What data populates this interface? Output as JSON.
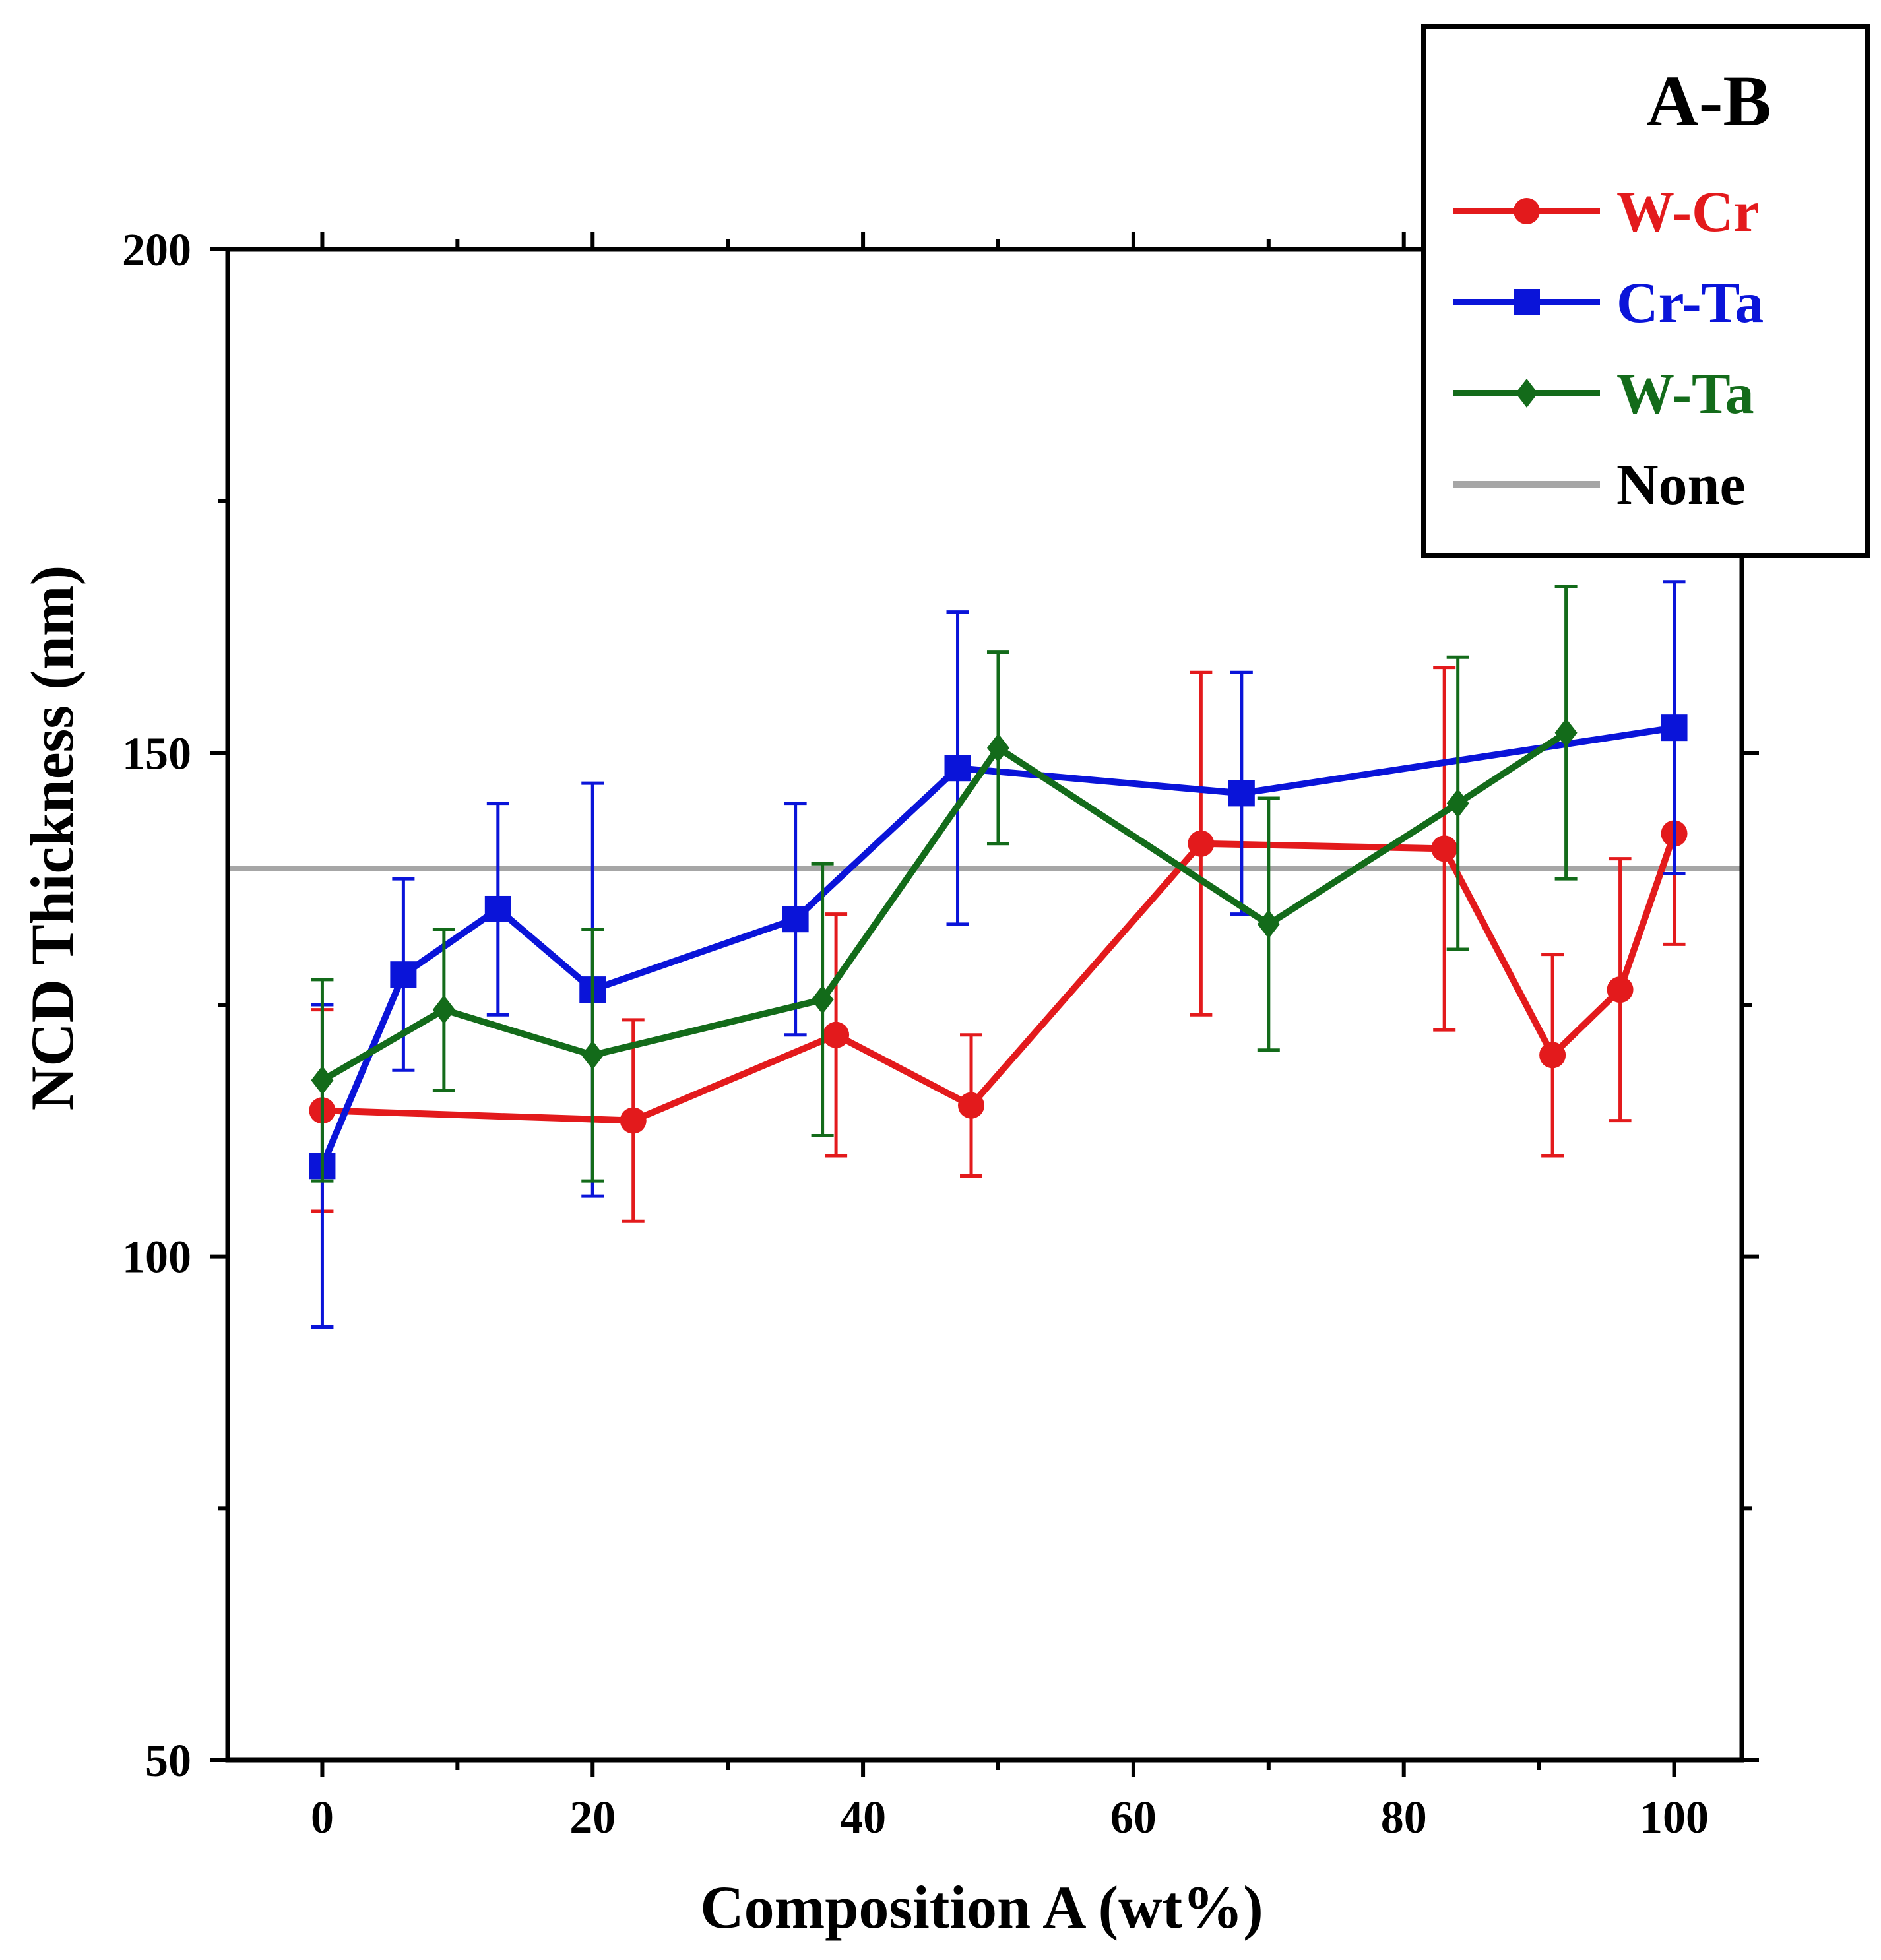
{
  "chart_data": {
    "type": "line",
    "xlabel": "Composition A (wt%)",
    "ylabel": "NCD Thickness (nm)",
    "xlim": [
      -7,
      105
    ],
    "ylim": [
      50,
      200
    ],
    "x_ticks": [
      0,
      20,
      40,
      60,
      80,
      100
    ],
    "x_minor_ticks": [
      10,
      30,
      50,
      70,
      90
    ],
    "y_ticks": [
      50,
      100,
      150,
      200
    ],
    "y_minor_ticks": [
      75,
      125,
      175
    ],
    "legend": {
      "title": "A-B",
      "placement": "top-right",
      "entries": [
        "W-Cr",
        "Cr-Ta",
        "W-Ta",
        "None"
      ]
    },
    "reference_line": {
      "name": "None",
      "y": 138.5,
      "color": "#a6a6a6"
    },
    "series": [
      {
        "name": "W-Cr",
        "color": "#e31a1c",
        "marker": "circle",
        "x": [
          0,
          23,
          38,
          48,
          65,
          83,
          91,
          96,
          100
        ],
        "y": [
          114.5,
          113.5,
          122,
          115,
          141,
          140.5,
          120,
          126.5,
          142
        ],
        "err": [
          10,
          10,
          12,
          7,
          17,
          18,
          10,
          13,
          11
        ]
      },
      {
        "name": "Cr-Ta",
        "color": "#0a14d9",
        "marker": "square",
        "x": [
          0,
          6,
          13,
          20,
          35,
          47,
          68,
          100
        ],
        "y": [
          109,
          128,
          134.5,
          126.5,
          133.5,
          148.5,
          146,
          152.5
        ],
        "err": [
          16,
          9.5,
          10.5,
          20.5,
          11.5,
          15.5,
          12,
          14.5
        ]
      },
      {
        "name": "W-Ta",
        "color": "#136b1a",
        "marker": "diamond",
        "x": [
          0,
          9,
          20,
          37,
          50,
          70,
          84,
          92
        ],
        "y": [
          117.5,
          124.5,
          120,
          125.5,
          150.5,
          133,
          145,
          152
        ],
        "err": [
          10,
          8,
          12.5,
          13.5,
          9.5,
          12.5,
          14.5,
          14.5
        ]
      }
    ]
  }
}
